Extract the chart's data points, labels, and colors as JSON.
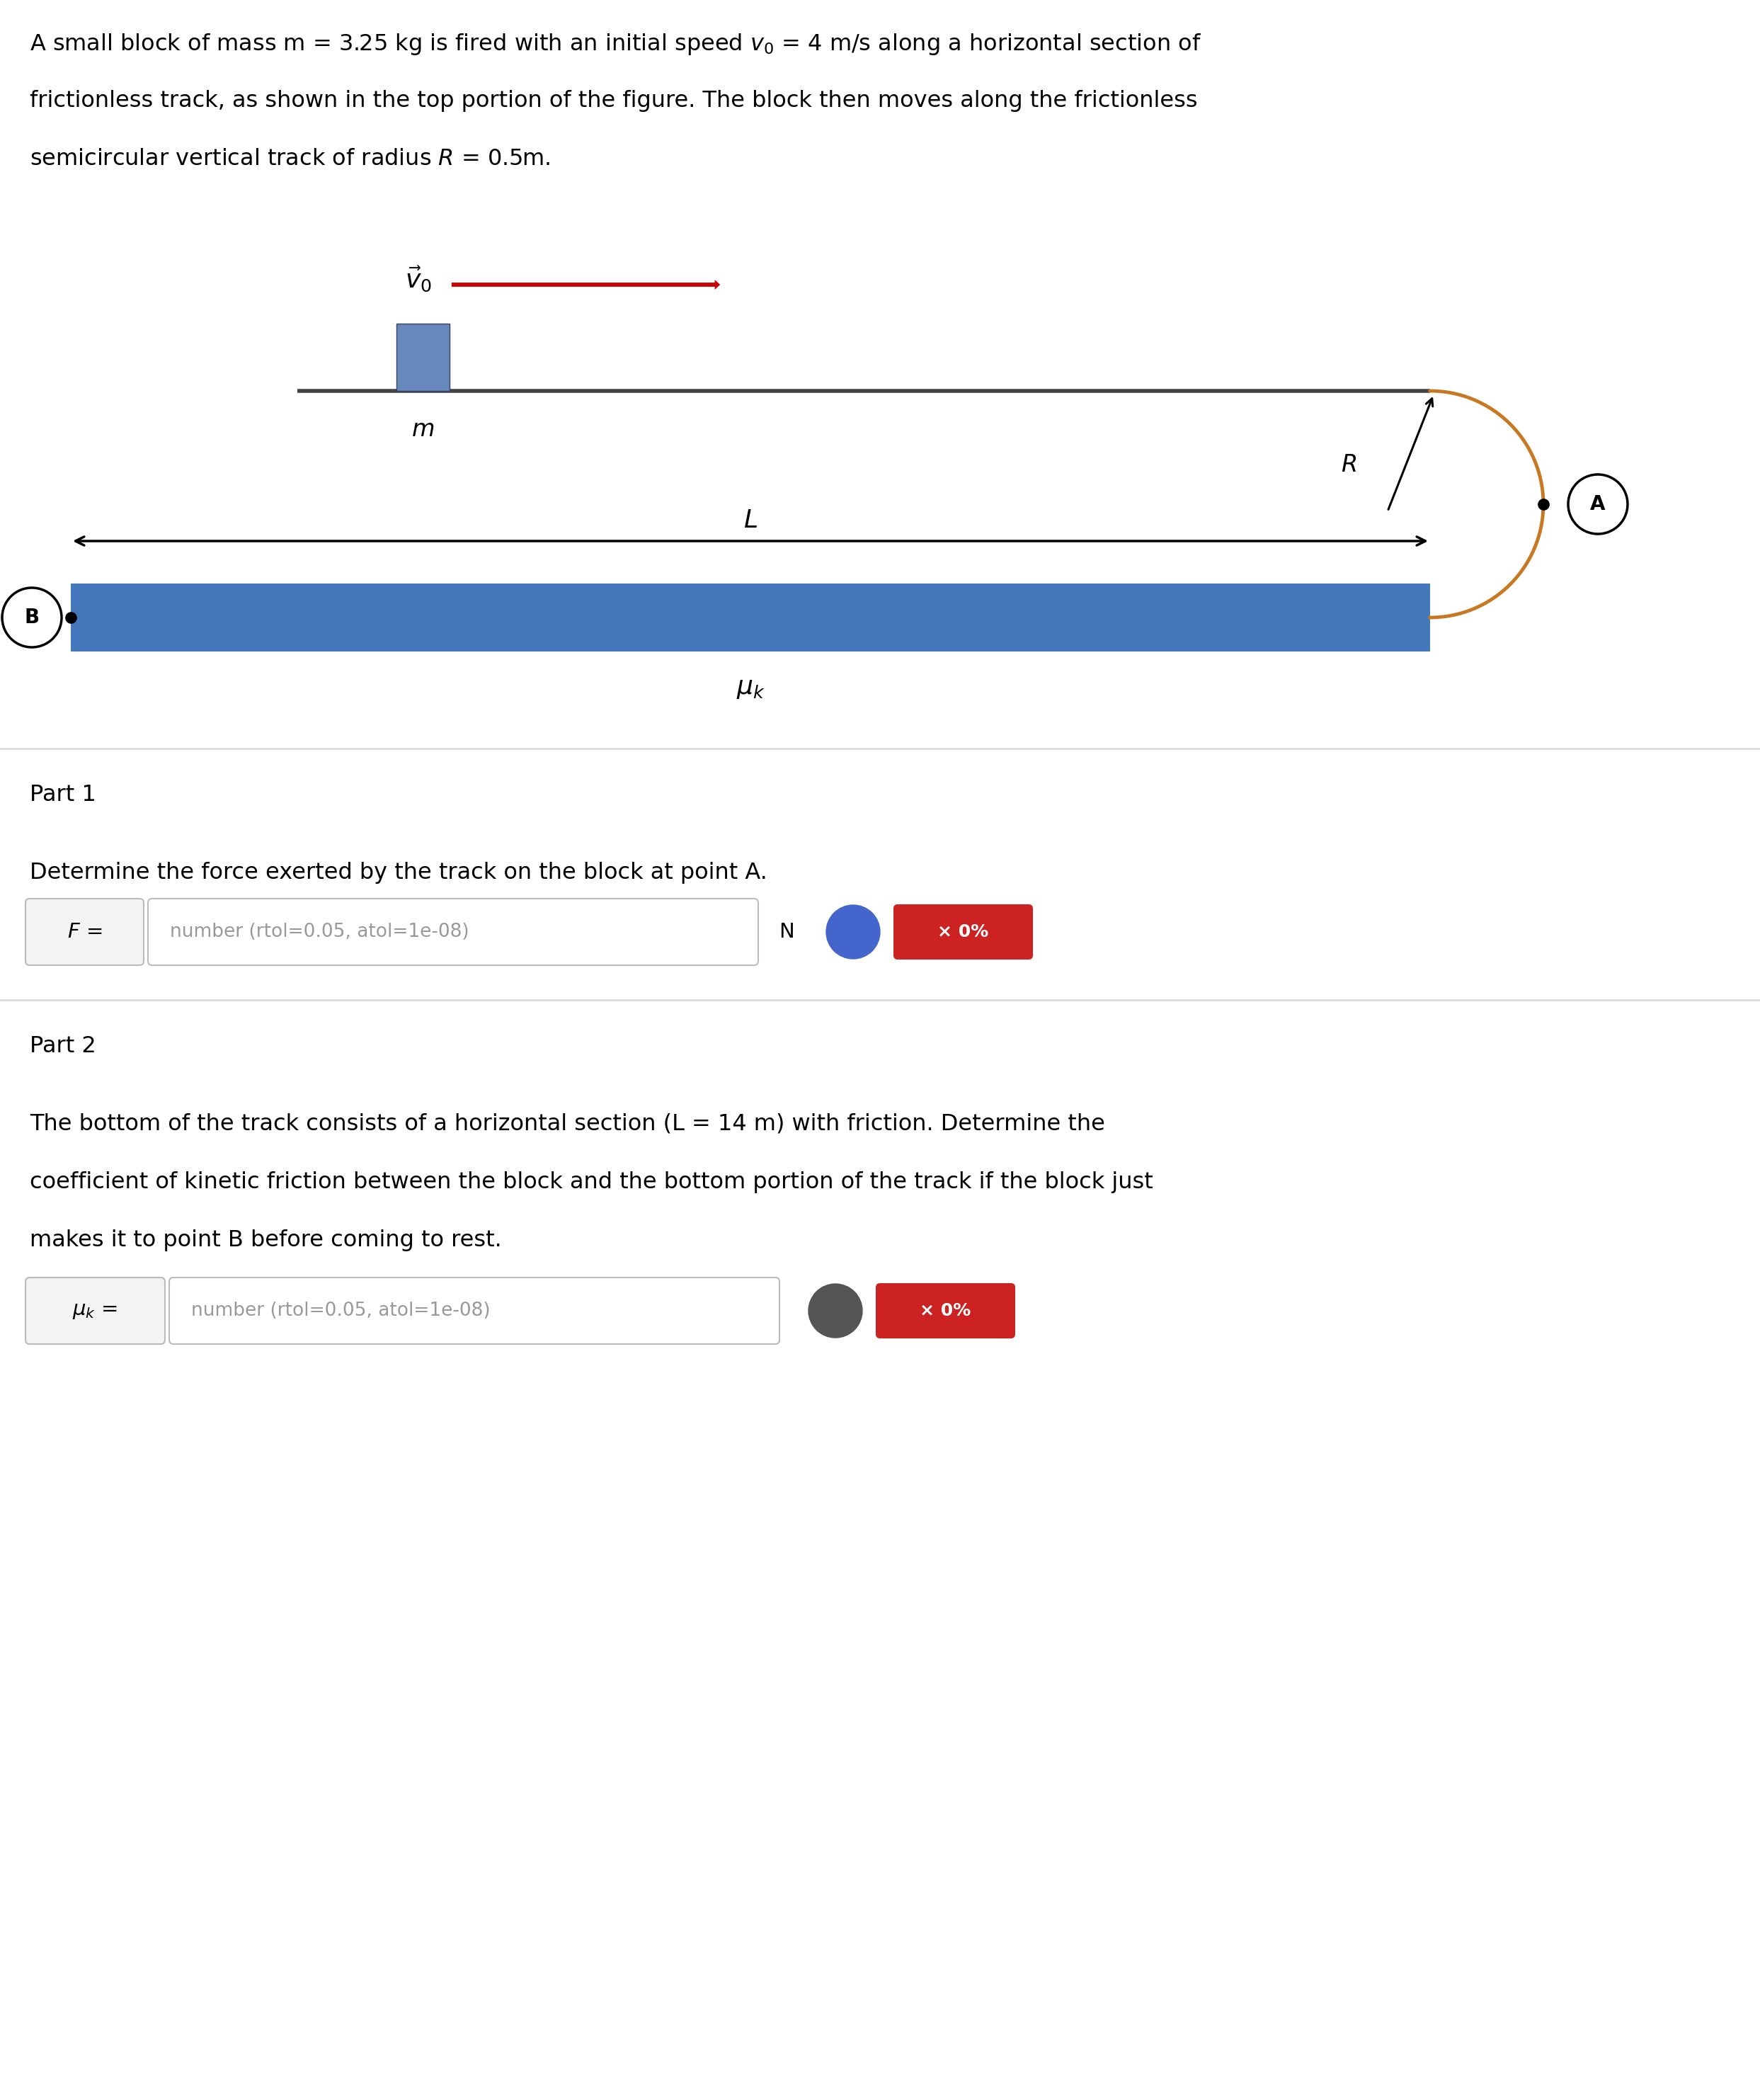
{
  "bg_color": "#ffffff",
  "track_color": "#444444",
  "block_color": "#6688bb",
  "block_edge_color": "#334466",
  "circle_track_color": "#c87820",
  "arrow_color": "#cc0000",
  "bottom_track_color": "#4477bb",
  "bottom_track_top_color": "#ffffff",
  "sep_color": "#dddddd",
  "title_lines": [
    "A small block of mass m = 3.25 kg is fired with an initial speed $v_0$ = 4 m/s along a horizontal section of",
    "frictionless track, as shown in the top portion of the figure. The block then moves along the frictionless",
    "semicircular vertical track of radius $R$ = 0.5m."
  ],
  "part1_label": "Part 1",
  "part1_question": "Determine the force exerted by the track on the block at point A.",
  "part1_box_label": "$F$ =",
  "part1_hint": "number (rtol=0.05, atol=1e-08)",
  "part1_unit": "N",
  "part2_label": "Part 2",
  "part2_lines": [
    "The bottom of the track consists of a horizontal section (L = 14 m) with friction. Determine the",
    "coefficient of kinetic friction between the block and the bottom portion of the track if the block just",
    "makes it to point B before coming to rest."
  ],
  "part2_box_label": "$\\mu_k$ =",
  "part2_hint": "number (rtol=0.05, atol=1e-08)",
  "xo_label": "× 0%",
  "q_label": "?",
  "q_color_p1": "#4466cc",
  "q_color_p2": "#555555",
  "red_btn_color": "#cc2222",
  "hint_color": "#999999"
}
